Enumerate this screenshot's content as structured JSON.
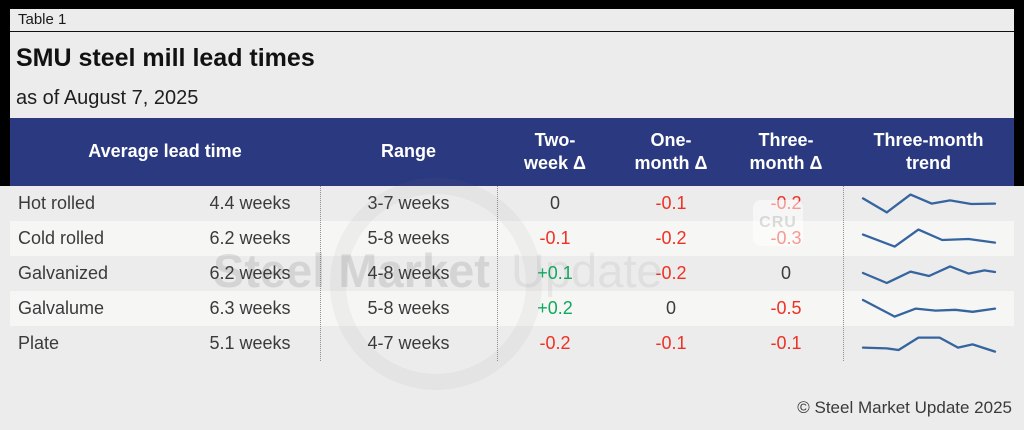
{
  "page": {
    "label": "Table 1",
    "title": "SMU steel mill lead times",
    "subtitle": "as of August 7, 2025",
    "footer": "© Steel Market Update 2025"
  },
  "watermark": {
    "bold": "Steel Market",
    "light": "Update",
    "badge": "CRU"
  },
  "colors": {
    "page_bg": "#ececec",
    "row_alt": "#f6f6f5",
    "header_bg": "#2b3a80",
    "negative": "#ee3124",
    "positive": "#10a95e",
    "sparkline": "#35649e"
  },
  "chart_data": {
    "type": "table",
    "columns": [
      "Average lead time",
      "Range",
      "Two-week Δ",
      "One-month Δ",
      "Three-month Δ",
      "Three-month trend"
    ],
    "header": {
      "avg": "Average lead time",
      "range": "Range",
      "delta_cols": [
        [
          "Two-",
          "week Δ"
        ],
        [
          "One-",
          "month Δ"
        ],
        [
          "Three-",
          "month Δ"
        ],
        [
          "Three-month",
          "trend"
        ]
      ]
    },
    "rows": [
      {
        "product": "Hot rolled",
        "avg": "4.4 weeks",
        "range": "3-7 weeks",
        "deltas": [
          "0",
          "-0.1",
          "-0.2"
        ],
        "trend": [
          [
            0,
            0.78
          ],
          [
            18,
            0.08
          ],
          [
            36,
            0.97
          ],
          [
            52,
            0.52
          ],
          [
            66,
            0.68
          ],
          [
            82,
            0.5
          ],
          [
            100,
            0.52
          ]
        ]
      },
      {
        "product": "Cold rolled",
        "avg": "6.2 weeks",
        "range": "5-8 weeks",
        "deltas": [
          "-0.1",
          "-0.2",
          "-0.3"
        ],
        "trend": [
          [
            0,
            0.72
          ],
          [
            24,
            0.12
          ],
          [
            42,
            0.97
          ],
          [
            60,
            0.45
          ],
          [
            80,
            0.5
          ],
          [
            100,
            0.32
          ]
        ]
      },
      {
        "product": "Galvanized",
        "avg": "6.2 weeks",
        "range": "4-8 weeks",
        "deltas": [
          "+0.1",
          "-0.2",
          "0"
        ],
        "trend": [
          [
            0,
            0.55
          ],
          [
            18,
            0.05
          ],
          [
            36,
            0.62
          ],
          [
            50,
            0.4
          ],
          [
            66,
            0.88
          ],
          [
            80,
            0.52
          ],
          [
            92,
            0.68
          ],
          [
            100,
            0.6
          ]
        ]
      },
      {
        "product": "Galvalume",
        "avg": "6.3 weeks",
        "range": "5-8 weeks",
        "deltas": [
          "+0.2",
          "0",
          "-0.5"
        ],
        "trend": [
          [
            0,
            0.95
          ],
          [
            24,
            0.12
          ],
          [
            40,
            0.52
          ],
          [
            55,
            0.42
          ],
          [
            70,
            0.46
          ],
          [
            83,
            0.36
          ],
          [
            100,
            0.52
          ]
        ]
      },
      {
        "product": "Plate",
        "avg": "5.1 weeks",
        "range": "4-7 weeks",
        "deltas": [
          "-0.2",
          "-0.1",
          "-0.1"
        ],
        "trend": [
          [
            0,
            0.32
          ],
          [
            18,
            0.28
          ],
          [
            27,
            0.2
          ],
          [
            42,
            0.82
          ],
          [
            58,
            0.82
          ],
          [
            72,
            0.32
          ],
          [
            83,
            0.48
          ],
          [
            100,
            0.12
          ]
        ]
      }
    ]
  }
}
